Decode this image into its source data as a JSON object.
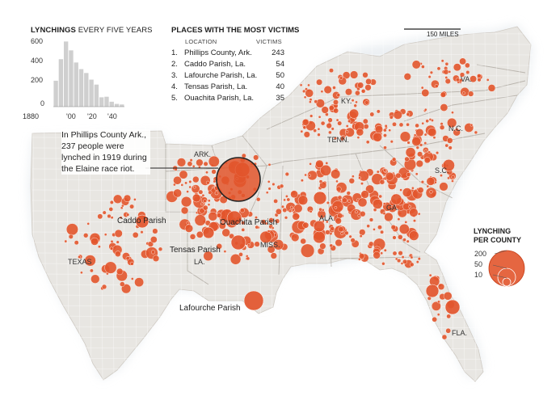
{
  "chart": {
    "title_bold": "LYNCHINGS",
    "title_rest": " EVERY FIVE YEARS",
    "y_ticks": [
      "600",
      "400",
      "200",
      "0"
    ],
    "x_ticks": [
      "1880",
      "'00",
      "'20",
      "'40"
    ]
  },
  "chart_data": {
    "type": "bar",
    "title": "LYNCHINGS EVERY FIVE YEARS",
    "xlabel": "",
    "ylabel": "",
    "ylim": [
      0,
      600
    ],
    "categories": [
      "1880",
      "1885",
      "1890",
      "1895",
      "1900",
      "1905",
      "1910",
      "1915",
      "1920",
      "1925",
      "1930",
      "1935",
      "1940",
      "1945"
    ],
    "values": [
      235,
      430,
      590,
      510,
      400,
      340,
      305,
      245,
      200,
      85,
      90,
      45,
      25,
      20
    ]
  },
  "places": {
    "title": "PLACES WITH THE MOST VICTIMS",
    "col_location": "LOCATION",
    "col_victims": "VICTIMS",
    "rows": [
      {
        "rank": "1.",
        "name": "Phillips County, Ark.",
        "victims": "243"
      },
      {
        "rank": "2.",
        "name": "Caddo Parish, La.",
        "victims": "54"
      },
      {
        "rank": "3.",
        "name": "Lafourche Parish, La.",
        "victims": "50"
      },
      {
        "rank": "4.",
        "name": "Tensas Parish, La.",
        "victims": "40"
      },
      {
        "rank": "5.",
        "name": "Ouachita Parish, La.",
        "victims": "35"
      }
    ]
  },
  "scale": {
    "label": "150 MILES"
  },
  "callout": {
    "text": "In Phillips County Ark., 237 people were lynched in 1919 during the Elaine race riot."
  },
  "states": {
    "va": "VA.",
    "ky": "KY.",
    "nc": "N.C.",
    "tenn": "TENN.",
    "ark": "ARK.",
    "sc": "S.C.",
    "ga": "GA.",
    "ala": "ALA.",
    "miss": "MISS.",
    "la": "LA.",
    "texas": "TEXAS",
    "fla": "FLA."
  },
  "parishes": {
    "caddo": "Caddo Parish",
    "ouachita": "Ouachita Parish",
    "tensas": "Tensas Parish",
    "lafourche": "Lafourche Parish"
  },
  "legend": {
    "title_line1": "LYNCHING",
    "title_line2": "PER COUNTY",
    "values": [
      "200",
      "50",
      "10"
    ]
  },
  "colors": {
    "dot": "#e2552c",
    "dot_stroke": "#c7401a",
    "land": "#e8e6e2",
    "ocean": "#ffffff",
    "bar": "#cfcfcf"
  }
}
